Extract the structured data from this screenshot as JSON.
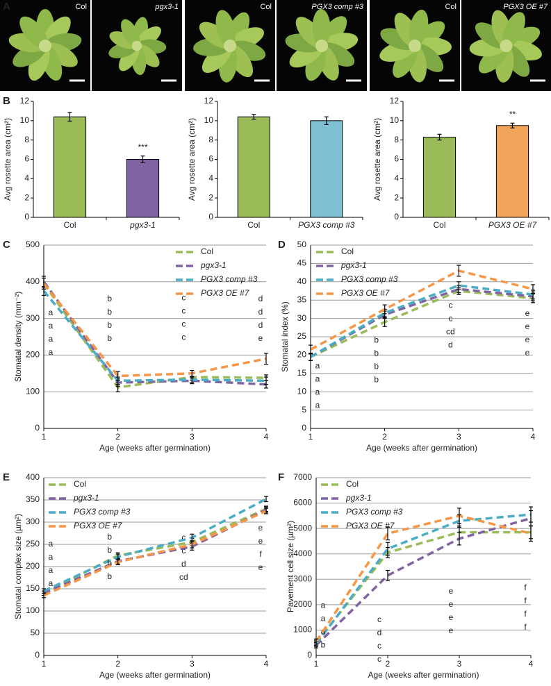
{
  "panel_labels": [
    "A",
    "B",
    "C",
    "D",
    "E",
    "F"
  ],
  "photos": [
    {
      "label": "Col"
    },
    {
      "label": "pgx3-1"
    },
    {
      "label": "Col"
    },
    {
      "label": "PGX3 comp #3"
    },
    {
      "label": "Col"
    },
    {
      "label": "PGX3 OE #7"
    }
  ],
  "chart_data": [
    {
      "type": "bar",
      "y_label": "Avg rosette area (cm²)",
      "categories": [
        "Col",
        "pgx3-1"
      ],
      "values": [
        10.4,
        6.0
      ],
      "errors": [
        0.45,
        0.35
      ],
      "colors": [
        "#9bbb59",
        "#8064a2"
      ],
      "value_annotations": [
        null,
        "***"
      ],
      "ylim": [
        0,
        12
      ],
      "yticks": [
        0,
        2,
        4,
        6,
        8,
        10,
        12
      ]
    },
    {
      "type": "bar",
      "y_label": "Avg rosette area (cm²)",
      "categories": [
        "Col",
        "PGX3 comp #3"
      ],
      "values": [
        10.4,
        10.0
      ],
      "errors": [
        0.25,
        0.4
      ],
      "colors": [
        "#9bbb59",
        "#7fbfd4"
      ],
      "ylim": [
        0,
        12
      ],
      "yticks": [
        0,
        2,
        4,
        6,
        8,
        10,
        12
      ]
    },
    {
      "type": "bar",
      "y_label": "Avg rosette area (cm²)",
      "categories": [
        "Col",
        "PGX3 OE #7"
      ],
      "values": [
        8.3,
        9.5
      ],
      "errors": [
        0.3,
        0.25
      ],
      "colors": [
        "#9bbb59",
        "#f0a55a"
      ],
      "value_annotations": [
        null,
        "**"
      ],
      "ylim": [
        0,
        12
      ],
      "yticks": [
        0,
        2,
        4,
        6,
        8,
        10,
        12
      ]
    },
    {
      "type": "line",
      "x_label": "Age (weeks after germination)",
      "y_label": "Stomatal density (mm⁻²)",
      "x": [
        1,
        2,
        3,
        4
      ],
      "xlim": [
        1,
        4
      ],
      "xticks": [
        1,
        2,
        3,
        4
      ],
      "ylim": [
        0,
        500
      ],
      "yticks": [
        0,
        100,
        200,
        300,
        400,
        500
      ],
      "grid": true,
      "series": [
        {
          "name": "Col",
          "color": "#9bbb59",
          "values": [
            395,
            112,
            140,
            138
          ],
          "errors": [
            15,
            12,
            10,
            8
          ],
          "letters": [
            "a",
            "b",
            "c",
            "d"
          ]
        },
        {
          "name": "pgx3-1",
          "color": "#8064a2",
          "values": [
            400,
            125,
            130,
            120
          ],
          "errors": [
            15,
            10,
            8,
            10
          ],
          "letters": [
            "a",
            "b",
            "c",
            "d"
          ]
        },
        {
          "name": "PGX3 comp #3",
          "color": "#4bacc6",
          "values": [
            375,
            130,
            133,
            130
          ],
          "errors": [
            12,
            10,
            8,
            10
          ],
          "letters": [
            "a",
            "b",
            "c",
            "d"
          ]
        },
        {
          "name": "PGX3 OE #7",
          "color": "#f79646",
          "values": [
            395,
            143,
            150,
            190
          ],
          "errors": [
            15,
            12,
            8,
            15
          ],
          "letters": [
            "a",
            "b",
            "c",
            "e"
          ]
        }
      ]
    },
    {
      "type": "line",
      "x_label": "Age (weeks after germination)",
      "y_label": "Stomatal index (%)",
      "x": [
        1,
        2,
        3,
        4
      ],
      "xlim": [
        1,
        4
      ],
      "xticks": [
        1,
        2,
        3,
        4
      ],
      "ylim": [
        0,
        50
      ],
      "yticks": [
        0,
        5,
        10,
        15,
        20,
        25,
        30,
        35,
        40,
        45,
        50
      ],
      "grid": true,
      "series": [
        {
          "name": "Col",
          "color": "#9bbb59",
          "values": [
            19.5,
            29,
            37.5,
            35.5
          ],
          "errors": [
            1,
            1.2,
            1,
            1.2
          ],
          "letters": [
            "a",
            "b",
            "c",
            "e"
          ]
        },
        {
          "name": "pgx3-1",
          "color": "#8064a2",
          "values": [
            19.5,
            31,
            38,
            36
          ],
          "errors": [
            1,
            1,
            1,
            1.2
          ],
          "letters": [
            "a",
            "b",
            "c",
            "e"
          ]
        },
        {
          "name": "PGX3 comp #3",
          "color": "#4bacc6",
          "values": [
            19.5,
            31.5,
            39,
            36.5
          ],
          "errors": [
            1,
            1,
            1,
            1.2
          ],
          "letters": [
            "a",
            "b",
            "cd",
            "e"
          ]
        },
        {
          "name": "PGX3 OE #7",
          "color": "#f79646",
          "values": [
            21.5,
            32.5,
            43,
            38
          ],
          "errors": [
            1.2,
            1.2,
            1.5,
            1.2
          ],
          "letters": [
            "a",
            "b",
            "d",
            "e"
          ]
        }
      ]
    },
    {
      "type": "line",
      "x_label": "Age (weeks after germination)",
      "y_label": "Stomatal complex size (µm²)",
      "x": [
        1,
        2,
        3,
        4
      ],
      "xlim": [
        1,
        4
      ],
      "xticks": [
        1,
        2,
        3,
        4
      ],
      "ylim": [
        0,
        400
      ],
      "yticks": [
        0,
        50,
        100,
        150,
        200,
        250,
        300,
        350,
        400
      ],
      "grid": true,
      "series": [
        {
          "name": "Col",
          "color": "#9bbb59",
          "values": [
            140,
            225,
            255,
            330
          ],
          "errors": [
            5,
            6,
            8,
            6
          ],
          "letters": [
            "a",
            "b",
            "c",
            "e"
          ]
        },
        {
          "name": "pgx3-1",
          "color": "#8064a2",
          "values": [
            140,
            212,
            245,
            328
          ],
          "errors": [
            5,
            6,
            8,
            6
          ],
          "letters": [
            "a",
            "b",
            "c",
            "e"
          ]
        },
        {
          "name": "PGX3 comp #3",
          "color": "#4bacc6",
          "values": [
            145,
            222,
            265,
            352
          ],
          "errors": [
            5,
            6,
            8,
            6
          ],
          "letters": [
            "a",
            "b",
            "d",
            "f"
          ]
        },
        {
          "name": "PGX3 OE #7",
          "color": "#f79646",
          "values": [
            135,
            210,
            250,
            325
          ],
          "errors": [
            5,
            6,
            8,
            6
          ],
          "letters": [
            "a",
            "b",
            "cd",
            "e"
          ]
        }
      ]
    },
    {
      "type": "line",
      "x_label": "Age (weeks after germination)",
      "y_label": "Pavement cell size (µm²)",
      "x": [
        1,
        2,
        3,
        4
      ],
      "xlim": [
        1,
        4
      ],
      "xticks": [
        1,
        2,
        3,
        4
      ],
      "ylim": [
        0,
        7000
      ],
      "yticks": [
        0,
        1000,
        2000,
        3000,
        4000,
        5000,
        6000,
        7000
      ],
      "grid": true,
      "series": [
        {
          "name": "Col",
          "color": "#9bbb59",
          "values": [
            500,
            4050,
            4850,
            4850
          ],
          "errors": [
            100,
            200,
            250,
            250
          ],
          "letters": [
            "a",
            "c",
            "e",
            "f"
          ]
        },
        {
          "name": "pgx3-1",
          "color": "#8064a2",
          "values": [
            400,
            3150,
            4600,
            5400
          ],
          "errors": [
            100,
            200,
            250,
            300
          ],
          "letters": [
            "a",
            "d",
            "e",
            "f"
          ]
        },
        {
          "name": "PGX3 comp #3",
          "color": "#4bacc6",
          "values": [
            450,
            4200,
            5300,
            5550
          ],
          "errors": [
            100,
            250,
            250,
            300
          ],
          "letters": [
            "a",
            "c",
            "e",
            "f"
          ]
        },
        {
          "name": "PGX3 OE #7",
          "color": "#f79646",
          "values": [
            550,
            4800,
            5500,
            4800
          ],
          "errors": [
            100,
            250,
            300,
            300
          ],
          "letters": [
            "b",
            "c",
            "e",
            "f"
          ]
        }
      ]
    }
  ]
}
